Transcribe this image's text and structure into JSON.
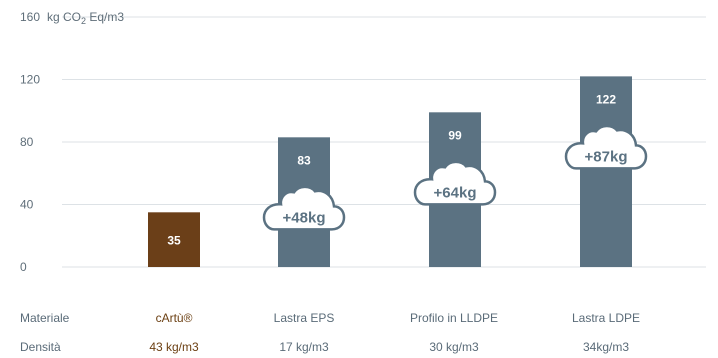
{
  "chart_data": {
    "type": "bar",
    "unit": {
      "prefix": "kg CO",
      "sub": "2",
      "suffix": " Eq/m3"
    },
    "yticks": [
      0,
      40,
      80,
      120,
      160
    ],
    "ylim": [
      0,
      160
    ],
    "grid": true,
    "categories": [
      "cArtù®",
      "Lastra EPS",
      "Profilo in LLDPE",
      "Lastra LDPE"
    ],
    "values": [
      35,
      83,
      99,
      122
    ],
    "differences": [
      "",
      "+48kg",
      "+64kg",
      "+87kg"
    ],
    "colors": [
      "#6b3f18",
      "#5b7282",
      "#5b7282",
      "#5b7282"
    ]
  },
  "table": {
    "rows": [
      {
        "label": "Materiale",
        "cells": [
          "cArtù®",
          "Lastra EPS",
          "Profilo in LLDPE",
          "Lastra LDPE"
        ]
      },
      {
        "label": "Densità",
        "cells": [
          "43 kg/m3",
          "17 kg/m3",
          "30 kg/m3",
          "34kg/m3"
        ]
      }
    ]
  }
}
